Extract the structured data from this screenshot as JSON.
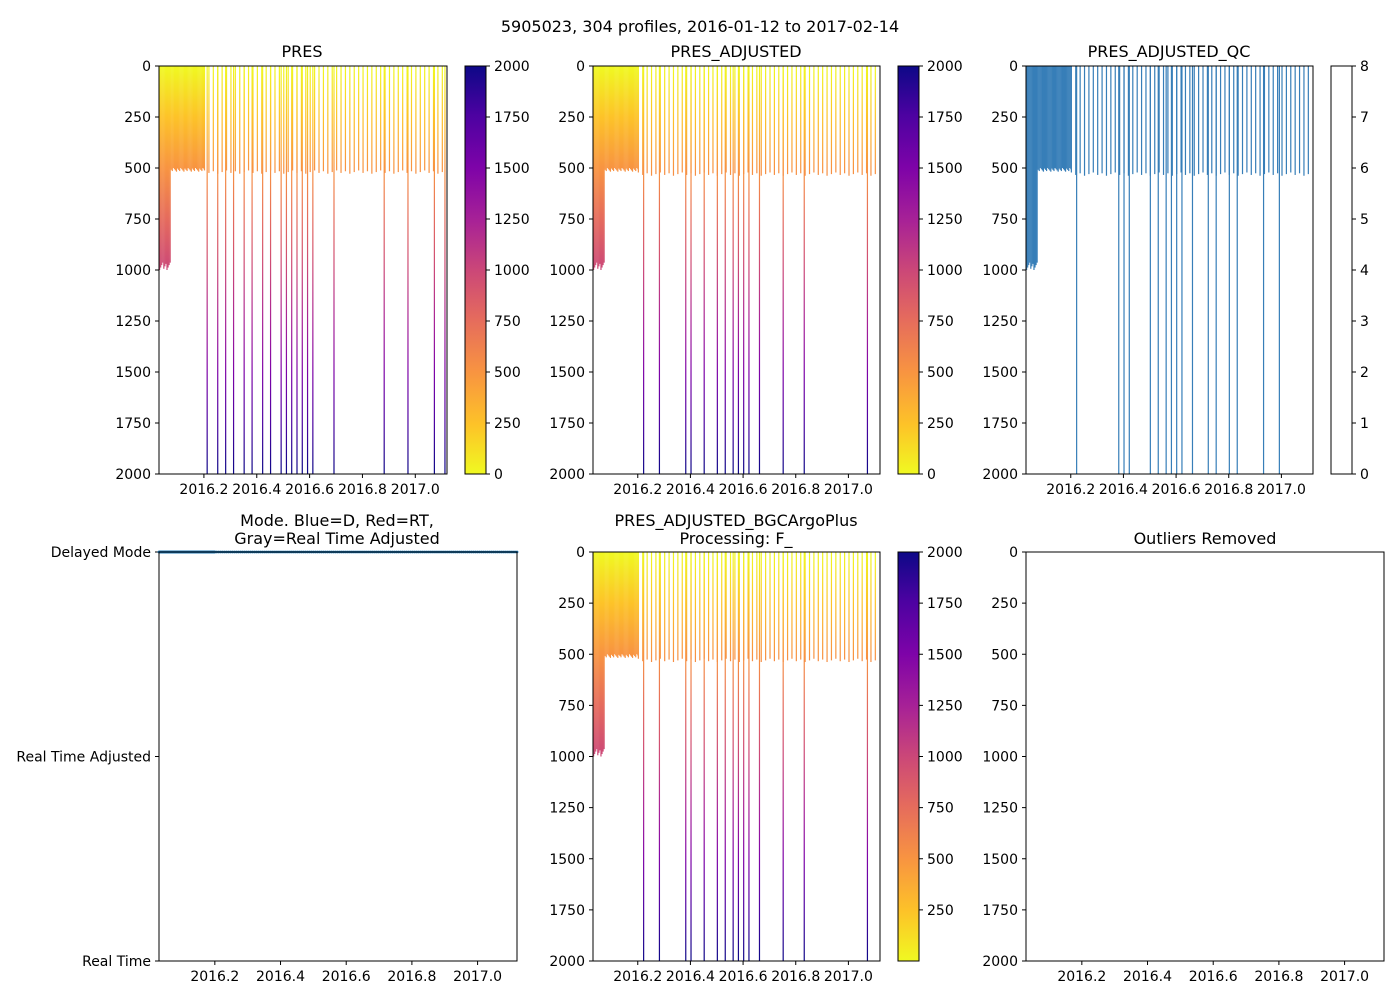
{
  "figure": {
    "title": "5905023, 304 profiles, 2016-01-12 to 2017-02-14"
  },
  "colors": {
    "mode_delayed": "#1f77b4",
    "qc_palette": [
      "#e41a1c",
      "#377eb8",
      "#4daf4a",
      "#984ea3",
      "#ff7f00",
      "#ffff33",
      "#a65628",
      "#f781bf",
      "#999999"
    ]
  },
  "chart_data": [
    {
      "id": "pres",
      "type": "heatmap",
      "title": "PRES",
      "xlabel": "",
      "ylabel": "",
      "x_ticks": [
        "2016.2",
        "2016.4",
        "2016.6",
        "2016.8",
        "2017.0"
      ],
      "y_ticks": [
        "0",
        "250",
        "500",
        "750",
        "1000",
        "1250",
        "1500",
        "1750",
        "2000"
      ],
      "xlim": [
        2016.03,
        2017.12
      ],
      "ylim": [
        2000,
        0
      ],
      "colormap": "plasma_r",
      "colorbar": {
        "range": [
          0,
          2000
        ],
        "ticks": [
          "0",
          "250",
          "500",
          "750",
          "1000",
          "1250",
          "1500",
          "1750",
          "2000"
        ]
      },
      "profile_groups": [
        {
          "x_range": [
            2016.03,
            2016.07
          ],
          "depth": 1000,
          "spacing": 0.004
        },
        {
          "x_range": [
            2016.07,
            2016.2
          ],
          "depth": 500,
          "spacing": 0.004
        }
      ],
      "profiles": [
        {
          "x": 2016.21,
          "depth": 2000
        },
        {
          "x": 2016.25,
          "depth": 2000
        },
        {
          "x": 2016.28,
          "depth": 2000
        },
        {
          "x": 2016.31,
          "depth": 2000
        },
        {
          "x": 2016.35,
          "depth": 2000
        },
        {
          "x": 2016.38,
          "depth": 2000
        },
        {
          "x": 2016.42,
          "depth": 2000
        },
        {
          "x": 2016.45,
          "depth": 2000
        },
        {
          "x": 2016.49,
          "depth": 2000
        },
        {
          "x": 2016.51,
          "depth": 2000
        },
        {
          "x": 2016.53,
          "depth": 2000
        },
        {
          "x": 2016.55,
          "depth": 2000
        },
        {
          "x": 2016.57,
          "depth": 2000
        },
        {
          "x": 2016.59,
          "depth": 2000
        },
        {
          "x": 2016.61,
          "depth": 2000
        },
        {
          "x": 2016.69,
          "depth": 2000
        },
        {
          "x": 2016.88,
          "depth": 2000
        },
        {
          "x": 2016.97,
          "depth": 2000
        },
        {
          "x": 2017.07,
          "depth": 2000
        },
        {
          "x": 2017.11,
          "depth": 2000
        }
      ],
      "shallow_profiles": {
        "x_range": [
          2016.2,
          2017.1
        ],
        "count": 55,
        "depth": 520
      }
    },
    {
      "id": "pres_adjusted",
      "type": "heatmap",
      "title": "PRES_ADJUSTED",
      "xlabel": "",
      "ylabel": "",
      "x_ticks": [
        "2016.2",
        "2016.4",
        "2016.6",
        "2016.8",
        "2017.0"
      ],
      "y_ticks": [
        "0",
        "250",
        "500",
        "750",
        "1000",
        "1250",
        "1500",
        "1750",
        "2000"
      ],
      "xlim": [
        2016.03,
        2017.12
      ],
      "ylim": [
        2000,
        0
      ],
      "colormap": "plasma_r",
      "colorbar": {
        "range": [
          0,
          2000
        ],
        "ticks": [
          "0",
          "250",
          "500",
          "750",
          "1000",
          "1250",
          "1500",
          "1750",
          "2000"
        ]
      },
      "profile_groups": [
        {
          "x_range": [
            2016.03,
            2016.07
          ],
          "depth": 1000,
          "spacing": 0.004
        },
        {
          "x_range": [
            2016.07,
            2016.2
          ],
          "depth": 500,
          "spacing": 0.004
        }
      ],
      "profiles": [
        {
          "x": 2016.22,
          "depth": 2000
        },
        {
          "x": 2016.28,
          "depth": 2000
        },
        {
          "x": 2016.38,
          "depth": 2000
        },
        {
          "x": 2016.4,
          "depth": 2000
        },
        {
          "x": 2016.45,
          "depth": 2000
        },
        {
          "x": 2016.5,
          "depth": 2000
        },
        {
          "x": 2016.53,
          "depth": 2000
        },
        {
          "x": 2016.56,
          "depth": 2000
        },
        {
          "x": 2016.58,
          "depth": 2000
        },
        {
          "x": 2016.6,
          "depth": 2000
        },
        {
          "x": 2016.62,
          "depth": 2000
        },
        {
          "x": 2016.66,
          "depth": 2000
        },
        {
          "x": 2016.75,
          "depth": 2000
        },
        {
          "x": 2016.83,
          "depth": 2000
        },
        {
          "x": 2017.07,
          "depth": 2000
        }
      ],
      "shallow_profiles": {
        "x_range": [
          2016.2,
          2017.1
        ],
        "count": 55,
        "depth": 530
      }
    },
    {
      "id": "pres_adjusted_qc",
      "type": "heatmap",
      "title": "PRES_ADJUSTED_QC",
      "xlabel": "",
      "ylabel": "",
      "x_ticks": [
        "2016.2",
        "2016.4",
        "2016.6",
        "2016.8",
        "2017.0"
      ],
      "y_ticks": [
        "0",
        "250",
        "500",
        "750",
        "1000",
        "1250",
        "1500",
        "1750",
        "2000"
      ],
      "xlim": [
        2016.03,
        2017.12
      ],
      "ylim": [
        2000,
        0
      ],
      "colormap": "qc",
      "qc_value": 1,
      "colorbar": {
        "range": [
          0,
          8
        ],
        "ticks": [
          "0",
          "1",
          "2",
          "3",
          "4",
          "5",
          "6",
          "7",
          "8"
        ]
      },
      "profile_groups": [
        {
          "x_range": [
            2016.03,
            2016.07
          ],
          "depth": 1000,
          "spacing": 0.004
        },
        {
          "x_range": [
            2016.07,
            2016.2
          ],
          "depth": 500,
          "spacing": 0.004
        }
      ],
      "profiles": [
        {
          "x": 2016.22,
          "depth": 2000
        },
        {
          "x": 2016.38,
          "depth": 2000
        },
        {
          "x": 2016.4,
          "depth": 2000
        },
        {
          "x": 2016.42,
          "depth": 2000
        },
        {
          "x": 2016.5,
          "depth": 2000
        },
        {
          "x": 2016.53,
          "depth": 2000
        },
        {
          "x": 2016.56,
          "depth": 2000
        },
        {
          "x": 2016.58,
          "depth": 2000
        },
        {
          "x": 2016.6,
          "depth": 2000
        },
        {
          "x": 2016.62,
          "depth": 2000
        },
        {
          "x": 2016.66,
          "depth": 2000
        },
        {
          "x": 2016.72,
          "depth": 2000
        },
        {
          "x": 2016.75,
          "depth": 2000
        },
        {
          "x": 2016.8,
          "depth": 2000
        },
        {
          "x": 2016.83,
          "depth": 2000
        },
        {
          "x": 2016.93,
          "depth": 2000
        },
        {
          "x": 2016.99,
          "depth": 2000
        }
      ],
      "shallow_profiles": {
        "x_range": [
          2016.2,
          2017.1
        ],
        "count": 55,
        "depth": 530
      }
    },
    {
      "id": "mode",
      "type": "scatter",
      "title": "Mode. Blue=D, Red=RT,\nGray=Real Time Adjusted",
      "title_lines": [
        "Mode. Blue=D, Red=RT,",
        "Gray=Real Time Adjusted"
      ],
      "xlabel": "",
      "ylabel": "",
      "x_ticks": [
        "2016.2",
        "2016.4",
        "2016.6",
        "2016.8",
        "2017.0"
      ],
      "y_ticks": [
        "Delayed Mode",
        "Real Time Adjusted",
        "Real Time"
      ],
      "xlim": [
        2016.03,
        2017.12
      ],
      "ylim": [
        0,
        2
      ],
      "series": [
        {
          "name": "D",
          "x_range": [
            2016.03,
            2017.12
          ],
          "y": 2,
          "count": 304
        }
      ]
    },
    {
      "id": "pres_adjusted_bgc",
      "type": "heatmap",
      "title": "PRES_ADJUSTED_BGCArgoPlus\nProcessing: F_",
      "title_lines": [
        "PRES_ADJUSTED_BGCArgoPlus",
        "Processing: F_"
      ],
      "xlabel": "",
      "ylabel": "",
      "x_ticks": [
        "2016.2",
        "2016.4",
        "2016.6",
        "2016.8",
        "2017.0"
      ],
      "y_ticks": [
        "0",
        "250",
        "500",
        "750",
        "1000",
        "1250",
        "1500",
        "1750",
        "2000"
      ],
      "xlim": [
        2016.03,
        2017.12
      ],
      "ylim": [
        2000,
        0
      ],
      "colormap": "plasma_r",
      "colorbar": {
        "range": [
          0,
          2000
        ],
        "ticks": [
          "250",
          "500",
          "750",
          "1000",
          "1250",
          "1500",
          "1750",
          "2000"
        ]
      },
      "profile_groups": [
        {
          "x_range": [
            2016.03,
            2016.07
          ],
          "depth": 1000,
          "spacing": 0.004
        },
        {
          "x_range": [
            2016.07,
            2016.2
          ],
          "depth": 500,
          "spacing": 0.004
        }
      ],
      "profiles": [
        {
          "x": 2016.22,
          "depth": 2000
        },
        {
          "x": 2016.28,
          "depth": 2000
        },
        {
          "x": 2016.38,
          "depth": 2000
        },
        {
          "x": 2016.4,
          "depth": 2000
        },
        {
          "x": 2016.45,
          "depth": 2000
        },
        {
          "x": 2016.5,
          "depth": 2000
        },
        {
          "x": 2016.53,
          "depth": 2000
        },
        {
          "x": 2016.56,
          "depth": 2000
        },
        {
          "x": 2016.58,
          "depth": 2000
        },
        {
          "x": 2016.6,
          "depth": 2000
        },
        {
          "x": 2016.62,
          "depth": 2000
        },
        {
          "x": 2016.66,
          "depth": 2000
        },
        {
          "x": 2016.75,
          "depth": 2000
        },
        {
          "x": 2016.83,
          "depth": 2000
        },
        {
          "x": 2017.07,
          "depth": 2000
        }
      ],
      "shallow_profiles": {
        "x_range": [
          2016.2,
          2017.1
        ],
        "count": 55,
        "depth": 530
      }
    },
    {
      "id": "outliers",
      "type": "scatter",
      "title": "Outliers Removed",
      "xlabel": "",
      "ylabel": "",
      "x_ticks": [
        "2016.2",
        "2016.4",
        "2016.6",
        "2016.8",
        "2017.0"
      ],
      "y_ticks": [
        "0",
        "250",
        "500",
        "750",
        "1000",
        "1250",
        "1500",
        "1750",
        "2000"
      ],
      "xlim": [
        2016.03,
        2017.12
      ],
      "ylim": [
        2000,
        0
      ],
      "series": []
    }
  ]
}
